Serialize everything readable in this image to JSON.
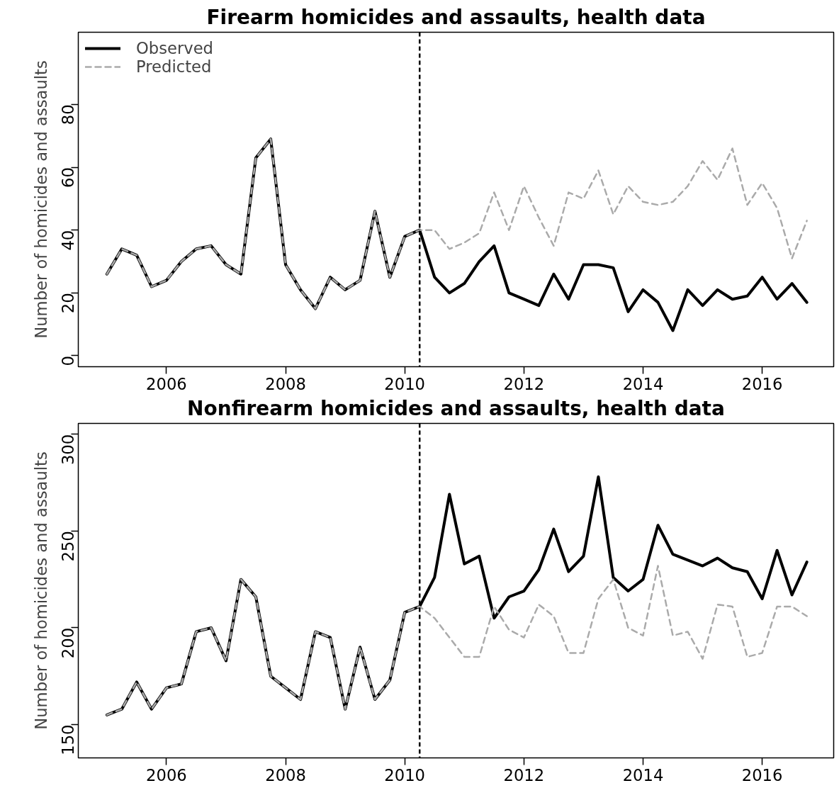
{
  "chart_data": [
    {
      "type": "line",
      "title": "Firearm homicides and assaults, health data",
      "ylabel": "Number of homicides and assaults",
      "x": [
        2005.0,
        2005.25,
        2005.5,
        2005.75,
        2006.0,
        2006.25,
        2006.5,
        2006.75,
        2007.0,
        2007.25,
        2007.5,
        2007.75,
        2008.0,
        2008.25,
        2008.5,
        2008.75,
        2009.0,
        2009.25,
        2009.5,
        2009.75,
        2010.0,
        2010.25,
        2010.5,
        2010.75,
        2011.0,
        2011.25,
        2011.5,
        2011.75,
        2012.0,
        2012.25,
        2012.5,
        2012.75,
        2013.0,
        2013.25,
        2013.5,
        2013.75,
        2014.0,
        2014.25,
        2014.5,
        2014.75,
        2015.0,
        2015.25,
        2015.5,
        2015.75,
        2016.0,
        2016.25,
        2016.5,
        2016.75
      ],
      "series": [
        {
          "name": "Observed",
          "color": "#000000",
          "line_style": "solid",
          "values": [
            26,
            34,
            32,
            22,
            24,
            30,
            34,
            35,
            29,
            26,
            63,
            69,
            29,
            21,
            15,
            25,
            21,
            24,
            46,
            25,
            38,
            40,
            25,
            20,
            23,
            30,
            35,
            20,
            18,
            16,
            26,
            18,
            29,
            29,
            28,
            14,
            21,
            17,
            8,
            21,
            16,
            21,
            18,
            19,
            25,
            18,
            23,
            17
          ]
        },
        {
          "name": "Predicted",
          "color": "#aaaaaa",
          "line_style": "dashed",
          "values": [
            26,
            34,
            32,
            22,
            24,
            30,
            34,
            35,
            29,
            26,
            63,
            69,
            29,
            21,
            15,
            25,
            21,
            24,
            46,
            25,
            38,
            40,
            40,
            34,
            36,
            39,
            52,
            40,
            54,
            44,
            35,
            52,
            50,
            59,
            45,
            54,
            49,
            48,
            49,
            54,
            62,
            56,
            66,
            48,
            55,
            47,
            31,
            43
          ]
        }
      ],
      "xlim": [
        2004.52,
        2017.2
      ],
      "xticks": [
        2006,
        2008,
        2010,
        2012,
        2014,
        2016
      ],
      "ylim": [
        -3.5,
        103
      ],
      "yticks": [
        0,
        20,
        40,
        60,
        80
      ],
      "ref_lines": [
        {
          "axis": "x",
          "value": 2010.25,
          "color": "#000000",
          "line_style": "dashed"
        }
      ],
      "grid": false,
      "legend": "top left",
      "marker": "none"
    },
    {
      "type": "line",
      "title": "Nonfirearm homicides and assaults, health data",
      "ylabel": "Number of homicides and assaults",
      "x": [
        2005.0,
        2005.25,
        2005.5,
        2005.75,
        2006.0,
        2006.25,
        2006.5,
        2006.75,
        2007.0,
        2007.25,
        2007.5,
        2007.75,
        2008.0,
        2008.25,
        2008.5,
        2008.75,
        2009.0,
        2009.25,
        2009.5,
        2009.75,
        2010.0,
        2010.25,
        2010.5,
        2010.75,
        2011.0,
        2011.25,
        2011.5,
        2011.75,
        2012.0,
        2012.25,
        2012.5,
        2012.75,
        2013.0,
        2013.25,
        2013.5,
        2013.75,
        2014.0,
        2014.25,
        2014.5,
        2014.75,
        2015.0,
        2015.25,
        2015.5,
        2015.75,
        2016.0,
        2016.25,
        2016.5,
        2016.75
      ],
      "series": [
        {
          "color": "#000000",
          "line_style": "solid",
          "values": [
            155,
            158,
            172,
            158,
            169,
            171,
            198,
            200,
            183,
            225,
            216,
            175,
            169,
            163,
            198,
            195,
            158,
            190,
            163,
            173,
            208,
            211,
            226,
            269,
            233,
            237,
            205,
            216,
            219,
            230,
            251,
            229,
            237,
            278,
            226,
            219,
            225,
            253,
            238,
            235,
            232,
            236,
            231,
            229,
            215,
            240,
            217,
            234
          ]
        },
        {
          "color": "#aaaaaa",
          "line_style": "dashed",
          "values": [
            155,
            158,
            172,
            158,
            169,
            171,
            198,
            200,
            183,
            225,
            216,
            175,
            169,
            163,
            198,
            195,
            158,
            190,
            163,
            173,
            208,
            211,
            205,
            195,
            185,
            185,
            211,
            199,
            195,
            212,
            206,
            187,
            187,
            215,
            225,
            200,
            196,
            232,
            196,
            198,
            184,
            212,
            211,
            185,
            187,
            211,
            211,
            206
          ]
        }
      ],
      "xlim": [
        2004.52,
        2017.2
      ],
      "xticks": [
        2006,
        2008,
        2010,
        2012,
        2014,
        2016
      ],
      "ylim": [
        132.8,
        305.6
      ],
      "yticks": [
        150,
        200,
        250,
        300
      ],
      "ref_lines": [
        {
          "axis": "x",
          "value": 2010.25,
          "color": "#000000",
          "line_style": "dashed"
        }
      ],
      "grid": false,
      "marker": "none"
    }
  ]
}
